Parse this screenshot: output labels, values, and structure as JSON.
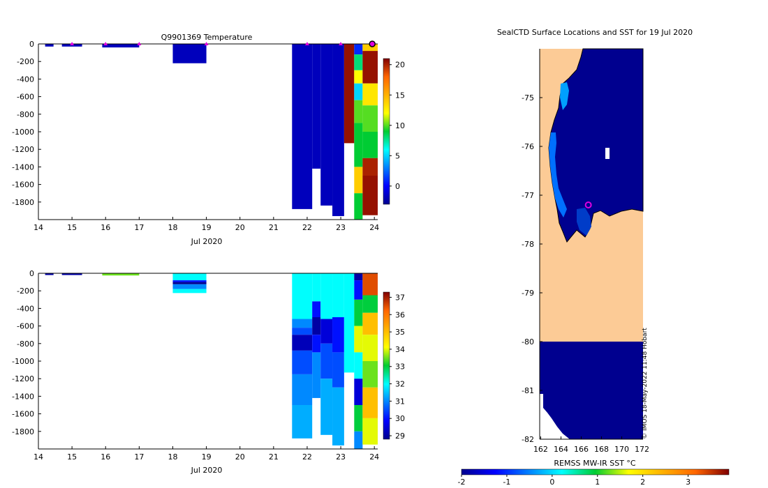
{
  "chart_data": [
    {
      "type": "heatmap",
      "title": "Q9901369  Temperature",
      "xlabel": "Jul 2020",
      "ylabel": "",
      "xlim": [
        14,
        24.1
      ],
      "ylim": [
        -2000,
        0
      ],
      "x_ticks": [
        "14",
        "15",
        "16",
        "17",
        "18",
        "19",
        "20",
        "21",
        "22",
        "23",
        "24"
      ],
      "y_ticks": [
        "0",
        "-200",
        "-400",
        "-600",
        "-800",
        "-1000",
        "-1200",
        "-1400",
        "-1600",
        "-1800"
      ],
      "colorbar": {
        "min": -3,
        "max": 21,
        "ticks": [
          "20",
          "15",
          "10",
          "5",
          "0"
        ]
      },
      "surface_markers_day": [
        15,
        16,
        17,
        19,
        22,
        23,
        24
      ],
      "columns": [
        {
          "x0": 14.2,
          "x1": 14.45,
          "segments": [
            [
              0,
              30,
              -1.8
            ]
          ]
        },
        {
          "x0": 14.7,
          "x1": 15.3,
          "segments": [
            [
              0,
              30,
              -1.8
            ]
          ]
        },
        {
          "x0": 15.9,
          "x1": 17.0,
          "segments": [
            [
              0,
              40,
              -1.8
            ]
          ]
        },
        {
          "x0": 18.0,
          "x1": 19.0,
          "segments": [
            [
              0,
              220,
              -1.8
            ]
          ]
        },
        {
          "x0": 21.55,
          "x1": 22.15,
          "segments": [
            [
              0,
              1880,
              -1.8
            ]
          ]
        },
        {
          "x0": 22.15,
          "x1": 22.4,
          "segments": [
            [
              0,
              1420,
              -1.8
            ]
          ]
        },
        {
          "x0": 22.4,
          "x1": 22.75,
          "segments": [
            [
              0,
              1840,
              -1.8
            ]
          ]
        },
        {
          "x0": 22.75,
          "x1": 23.1,
          "segments": [
            [
              0,
              1960,
              -1.8
            ]
          ]
        },
        {
          "x0": 23.1,
          "x1": 23.4,
          "segments": [
            [
              0,
              1130,
              20.5
            ]
          ]
        },
        {
          "x0": 23.4,
          "x1": 23.65,
          "segments": [
            [
              0,
              120,
              1
            ],
            [
              120,
              300,
              8
            ],
            [
              300,
              450,
              12
            ],
            [
              450,
              640,
              5
            ],
            [
              640,
              900,
              10
            ],
            [
              900,
              1400,
              9
            ],
            [
              1400,
              1700,
              14
            ],
            [
              1700,
              2000,
              9
            ]
          ]
        },
        {
          "x0": 23.65,
          "x1": 24.1,
          "segments": [
            [
              0,
              80,
              14
            ],
            [
              80,
              450,
              20.5
            ],
            [
              450,
              700,
              13
            ],
            [
              700,
              1000,
              10
            ],
            [
              1000,
              1300,
              9
            ],
            [
              1300,
              1500,
              20
            ],
            [
              1500,
              1950,
              20.5
            ]
          ]
        }
      ]
    },
    {
      "type": "heatmap",
      "title": "",
      "xlabel": "Jul 2020",
      "ylabel": "",
      "xlim": [
        14,
        24.1
      ],
      "ylim": [
        -2000,
        0
      ],
      "x_ticks": [
        "14",
        "15",
        "16",
        "17",
        "18",
        "19",
        "20",
        "21",
        "22",
        "23",
        "24"
      ],
      "y_ticks": [
        "0",
        "-200",
        "-400",
        "-600",
        "-800",
        "-1000",
        "-1200",
        "-1400",
        "-1600",
        "-1800"
      ],
      "colorbar": {
        "min": 28.8,
        "max": 37.3,
        "ticks": [
          "37",
          "36",
          "35",
          "34",
          "33",
          "32",
          "31",
          "30",
          "29"
        ]
      },
      "columns": [
        {
          "x0": 14.2,
          "x1": 14.45,
          "segments": [
            [
              0,
              20,
              29
            ]
          ]
        },
        {
          "x0": 14.7,
          "x1": 15.3,
          "segments": [
            [
              0,
              20,
              29
            ]
          ]
        },
        {
          "x0": 15.9,
          "x1": 17.0,
          "segments": [
            [
              0,
              25,
              33.5
            ]
          ]
        },
        {
          "x0": 18.0,
          "x1": 19.0,
          "segments": [
            [
              0,
              80,
              32
            ],
            [
              80,
              100,
              30
            ],
            [
              100,
              125,
              28.8
            ],
            [
              125,
              180,
              31
            ],
            [
              180,
              225,
              32
            ]
          ]
        },
        {
          "x0": 21.55,
          "x1": 22.15,
          "segments": [
            [
              0,
              520,
              32
            ],
            [
              520,
              620,
              31
            ],
            [
              620,
              700,
              30.5
            ],
            [
              700,
              880,
              29.2
            ],
            [
              880,
              1150,
              30.5
            ],
            [
              1150,
              1500,
              31
            ],
            [
              1500,
              1880,
              31.3
            ]
          ]
        },
        {
          "x0": 22.15,
          "x1": 22.4,
          "segments": [
            [
              0,
              320,
              32
            ],
            [
              320,
              500,
              30
            ],
            [
              500,
              700,
              29
            ],
            [
              700,
              900,
              30
            ],
            [
              900,
              1420,
              31
            ]
          ]
        },
        {
          "x0": 22.4,
          "x1": 22.75,
          "segments": [
            [
              0,
              520,
              32
            ],
            [
              520,
              800,
              29.5
            ],
            [
              800,
              1200,
              30.5
            ],
            [
              1200,
              1840,
              31.3
            ]
          ]
        },
        {
          "x0": 22.75,
          "x1": 23.1,
          "segments": [
            [
              0,
              500,
              32
            ],
            [
              500,
              900,
              30
            ],
            [
              900,
              1300,
              30.5
            ],
            [
              1300,
              1960,
              31.3
            ]
          ]
        },
        {
          "x0": 23.1,
          "x1": 23.4,
          "segments": [
            [
              0,
              1130,
              32
            ]
          ]
        },
        {
          "x0": 23.4,
          "x1": 23.65,
          "segments": [
            [
              0,
              80,
              29
            ],
            [
              80,
              300,
              30
            ],
            [
              300,
              600,
              33
            ],
            [
              600,
              900,
              34
            ],
            [
              900,
              1200,
              32
            ],
            [
              1200,
              1500,
              29.5
            ],
            [
              1500,
              1800,
              33
            ],
            [
              1800,
              2000,
              31
            ]
          ]
        },
        {
          "x0": 23.65,
          "x1": 24.1,
          "segments": [
            [
              0,
              250,
              36.5
            ],
            [
              250,
              450,
              33
            ],
            [
              450,
              700,
              35
            ],
            [
              700,
              1000,
              34
            ],
            [
              1000,
              1300,
              33.5
            ],
            [
              1300,
              1650,
              35
            ],
            [
              1650,
              1950,
              34
            ]
          ]
        }
      ]
    },
    {
      "type": "heatmap",
      "title": "SealCTD Surface Locations and SST for 19 Jul 2020",
      "xlabel": "",
      "ylabel": "",
      "xlim": [
        161.9,
        172.1
      ],
      "ylim": [
        -82,
        -74.0
      ],
      "x_ticks": [
        "162",
        "164",
        "166",
        "168",
        "170",
        "172"
      ],
      "y_ticks": [
        "-75",
        "-76",
        "-77",
        "-78",
        "-79",
        "-80",
        "-81",
        "-82"
      ],
      "colorbar_label": "REMSS MW-IR SST °C",
      "colorbar": {
        "min": -2,
        "max": 3.9,
        "ticks": [
          "-2",
          "-1",
          "0",
          "1",
          "2",
          "3"
        ]
      },
      "land_color": "#fccb96",
      "sst_value_dominant": -1.8,
      "seal_location": {
        "lon": 166.7,
        "lat": -77.2
      },
      "watermark": "© IMOS 18-May-2022 11:48 Hobart"
    }
  ]
}
